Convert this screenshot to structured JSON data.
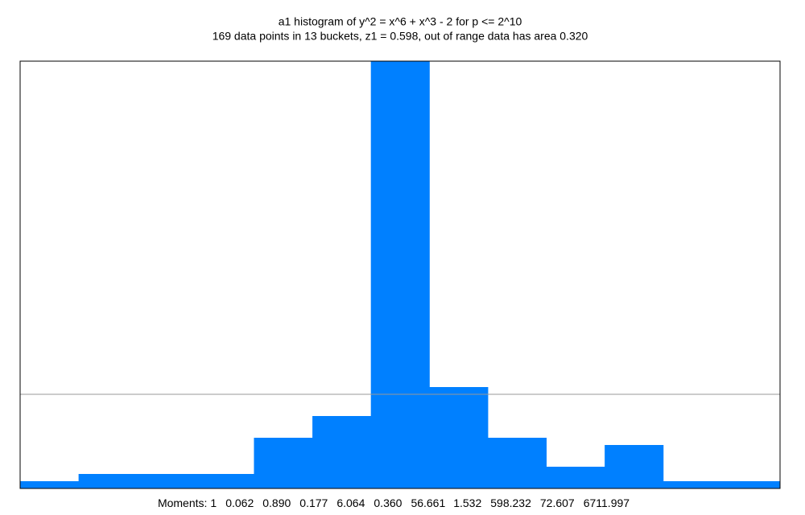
{
  "chart_data": {
    "type": "histogram",
    "title": "a1 histogram of y^2 = x^6 + x^3 - 2 for p <= 2^10",
    "subtitle": "169 data points in 13 buckets, z1 = 0.598, out of range data has area 0.320",
    "categories": [
      null,
      null,
      null,
      null,
      null,
      null,
      null,
      null,
      null,
      null,
      null,
      null,
      null
    ],
    "values": [
      1,
      2,
      2,
      2,
      7,
      10,
      59,
      14,
      7,
      3,
      6,
      1,
      1
    ],
    "color": "#0080ff",
    "ylim": [
      0,
      59
    ],
    "reference_line": 13,
    "moments_label": "Moments:",
    "moments": [
      1,
      0.062,
      {
        "value": 0.89,
        "label": "0.890"
      },
      0.177,
      6.064,
      {
        "value": 0.36,
        "label": "0.360"
      },
      56.661,
      1.532,
      598.232,
      72.607,
      6711.997
    ]
  }
}
